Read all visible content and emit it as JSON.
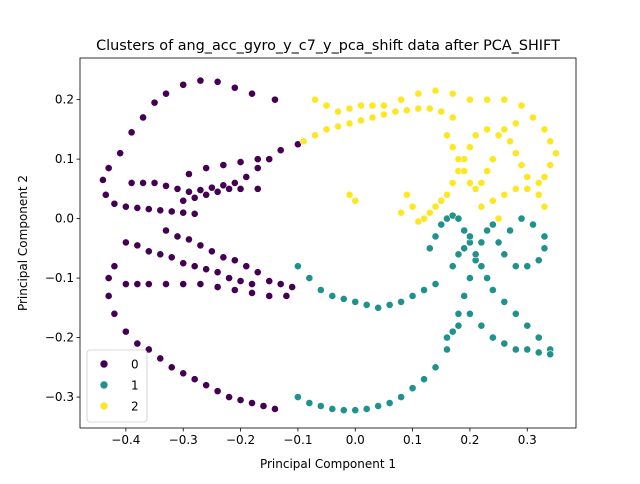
{
  "chart_data": {
    "type": "scatter",
    "title": "Clusters of ang_acc_gyro_y_c7_y_pca_shift data after PCA_SHIFT",
    "xlabel": "Principal Component 1",
    "ylabel": "Principal Component 2",
    "xlim": [
      -0.48,
      0.385
    ],
    "ylim": [
      -0.352,
      0.27
    ],
    "xticks": [
      -0.4,
      -0.3,
      -0.2,
      -0.1,
      0.0,
      0.1,
      0.2,
      0.3
    ],
    "xtick_labels": [
      "−0.4",
      "−0.3",
      "−0.2",
      "−0.1",
      "0.0",
      "0.1",
      "0.2",
      "0.3"
    ],
    "yticks": [
      -0.3,
      -0.2,
      -0.1,
      0.0,
      0.1,
      0.2
    ],
    "ytick_labels": [
      "−0.3",
      "−0.2",
      "−0.1",
      "0.0",
      "0.1",
      "0.2"
    ],
    "grid": false,
    "legend": {
      "placement": "lower-left",
      "entries": [
        "0",
        "1",
        "2"
      ]
    },
    "series": [
      {
        "name": "0",
        "color": "#440154",
        "points": [
          [
            -0.35,
            0.195
          ],
          [
            -0.33,
            0.21
          ],
          [
            -0.3,
            0.225
          ],
          [
            -0.27,
            0.232
          ],
          [
            -0.24,
            0.23
          ],
          [
            -0.21,
            0.22
          ],
          [
            -0.18,
            0.21
          ],
          [
            -0.14,
            0.2
          ],
          [
            -0.37,
            0.17
          ],
          [
            -0.39,
            0.145
          ],
          [
            -0.41,
            0.11
          ],
          [
            -0.43,
            0.085
          ],
          [
            -0.44,
            0.065
          ],
          [
            -0.435,
            0.04
          ],
          [
            -0.42,
            0.025
          ],
          [
            -0.4,
            0.02
          ],
          [
            -0.38,
            0.018
          ],
          [
            -0.36,
            0.016
          ],
          [
            -0.34,
            0.014
          ],
          [
            -0.32,
            0.012
          ],
          [
            -0.3,
            0.01
          ],
          [
            -0.28,
            0.008
          ],
          [
            -0.39,
            0.06
          ],
          [
            -0.37,
            0.06
          ],
          [
            -0.35,
            0.06
          ],
          [
            -0.33,
            0.055
          ],
          [
            -0.31,
            0.05
          ],
          [
            -0.29,
            0.045
          ],
          [
            -0.27,
            0.048
          ],
          [
            -0.25,
            0.052
          ],
          [
            -0.23,
            0.056
          ],
          [
            -0.21,
            0.06
          ],
          [
            -0.19,
            0.07
          ],
          [
            -0.17,
            0.085
          ],
          [
            -0.15,
            0.1
          ],
          [
            -0.13,
            0.115
          ],
          [
            -0.1,
            0.125
          ],
          [
            -0.29,
            0.075
          ],
          [
            -0.26,
            0.085
          ],
          [
            -0.23,
            0.09
          ],
          [
            -0.2,
            0.095
          ],
          [
            -0.17,
            0.1
          ],
          [
            -0.3,
            0.03
          ],
          [
            -0.28,
            0.035
          ],
          [
            -0.26,
            0.04
          ],
          [
            -0.24,
            0.045
          ],
          [
            -0.22,
            0.05
          ],
          [
            -0.2,
            0.05
          ],
          [
            -0.17,
            0.05
          ],
          [
            -0.33,
            -0.02
          ],
          [
            -0.31,
            -0.03
          ],
          [
            -0.29,
            -0.035
          ],
          [
            -0.27,
            -0.045
          ],
          [
            -0.25,
            -0.055
          ],
          [
            -0.23,
            -0.065
          ],
          [
            -0.21,
            -0.07
          ],
          [
            -0.19,
            -0.08
          ],
          [
            -0.17,
            -0.09
          ],
          [
            -0.15,
            -0.105
          ],
          [
            -0.13,
            -0.11
          ],
          [
            -0.11,
            -0.115
          ],
          [
            -0.4,
            -0.04
          ],
          [
            -0.38,
            -0.045
          ],
          [
            -0.36,
            -0.055
          ],
          [
            -0.34,
            -0.06
          ],
          [
            -0.32,
            -0.065
          ],
          [
            -0.3,
            -0.075
          ],
          [
            -0.28,
            -0.08
          ],
          [
            -0.26,
            -0.085
          ],
          [
            -0.24,
            -0.09
          ],
          [
            -0.22,
            -0.1
          ],
          [
            -0.2,
            -0.105
          ],
          [
            -0.18,
            -0.11
          ],
          [
            -0.42,
            -0.08
          ],
          [
            -0.43,
            -0.1
          ],
          [
            -0.43,
            -0.13
          ],
          [
            -0.42,
            -0.16
          ],
          [
            -0.4,
            -0.19
          ],
          [
            -0.38,
            -0.21
          ],
          [
            -0.36,
            -0.22
          ],
          [
            -0.34,
            -0.235
          ],
          [
            -0.32,
            -0.25
          ],
          [
            -0.3,
            -0.26
          ],
          [
            -0.28,
            -0.27
          ],
          [
            -0.26,
            -0.28
          ],
          [
            -0.24,
            -0.29
          ],
          [
            -0.22,
            -0.3
          ],
          [
            -0.2,
            -0.305
          ],
          [
            -0.18,
            -0.31
          ],
          [
            -0.16,
            -0.315
          ],
          [
            -0.14,
            -0.32
          ],
          [
            -0.4,
            -0.11
          ],
          [
            -0.38,
            -0.11
          ],
          [
            -0.36,
            -0.11
          ],
          [
            -0.33,
            -0.11
          ],
          [
            -0.3,
            -0.11
          ],
          [
            -0.27,
            -0.11
          ],
          [
            -0.24,
            -0.115
          ],
          [
            -0.21,
            -0.12
          ],
          [
            -0.18,
            -0.125
          ],
          [
            -0.15,
            -0.13
          ],
          [
            -0.12,
            -0.13
          ]
        ]
      },
      {
        "name": "1",
        "color": "#21918c",
        "points": [
          [
            -0.1,
            -0.3
          ],
          [
            -0.08,
            -0.31
          ],
          [
            -0.06,
            -0.315
          ],
          [
            -0.04,
            -0.32
          ],
          [
            -0.02,
            -0.322
          ],
          [
            0.0,
            -0.322
          ],
          [
            0.02,
            -0.32
          ],
          [
            0.04,
            -0.315
          ],
          [
            0.06,
            -0.31
          ],
          [
            0.08,
            -0.3
          ],
          [
            0.1,
            -0.285
          ],
          [
            0.12,
            -0.27
          ],
          [
            0.14,
            -0.25
          ],
          [
            0.16,
            -0.22
          ],
          [
            0.17,
            -0.19
          ],
          [
            0.18,
            -0.16
          ],
          [
            0.19,
            -0.13
          ],
          [
            0.2,
            -0.1
          ],
          [
            0.21,
            -0.07
          ],
          [
            0.22,
            -0.04
          ],
          [
            0.23,
            -0.02
          ],
          [
            0.24,
            -0.01
          ],
          [
            -0.1,
            -0.08
          ],
          [
            -0.08,
            -0.1
          ],
          [
            -0.06,
            -0.12
          ],
          [
            -0.04,
            -0.13
          ],
          [
            -0.02,
            -0.135
          ],
          [
            0.0,
            -0.14
          ],
          [
            0.02,
            -0.145
          ],
          [
            0.04,
            -0.15
          ],
          [
            0.06,
            -0.145
          ],
          [
            0.08,
            -0.14
          ],
          [
            0.1,
            -0.13
          ],
          [
            0.12,
            -0.12
          ],
          [
            0.14,
            -0.11
          ],
          [
            0.13,
            -0.05
          ],
          [
            0.14,
            -0.03
          ],
          [
            0.15,
            -0.01
          ],
          [
            0.16,
            0.0
          ],
          [
            0.17,
            0.005
          ],
          [
            0.18,
            0.0
          ],
          [
            0.19,
            -0.02
          ],
          [
            0.2,
            -0.04
          ],
          [
            0.21,
            -0.06
          ],
          [
            0.22,
            -0.08
          ],
          [
            0.23,
            -0.1
          ],
          [
            0.24,
            -0.12
          ],
          [
            0.26,
            -0.14
          ],
          [
            0.28,
            -0.16
          ],
          [
            0.3,
            -0.18
          ],
          [
            0.32,
            -0.2
          ],
          [
            0.34,
            -0.22
          ],
          [
            0.33,
            -0.05
          ],
          [
            0.32,
            -0.07
          ],
          [
            0.3,
            -0.08
          ],
          [
            0.28,
            -0.08
          ],
          [
            0.26,
            -0.06
          ],
          [
            0.25,
            -0.04
          ],
          [
            0.27,
            -0.02
          ],
          [
            0.29,
            0.0
          ],
          [
            0.31,
            -0.01
          ],
          [
            0.33,
            -0.03
          ],
          [
            0.17,
            -0.08
          ],
          [
            0.18,
            -0.06
          ],
          [
            0.19,
            -0.05
          ],
          [
            0.2,
            -0.03
          ],
          [
            0.16,
            -0.2
          ],
          [
            0.18,
            -0.18
          ],
          [
            0.2,
            -0.16
          ],
          [
            0.22,
            -0.18
          ],
          [
            0.24,
            -0.2
          ],
          [
            0.26,
            -0.21
          ],
          [
            0.28,
            -0.22
          ],
          [
            0.3,
            -0.22
          ],
          [
            0.32,
            -0.225
          ],
          [
            0.34,
            -0.228
          ]
        ]
      },
      {
        "name": "2",
        "color": "#fde725",
        "points": [
          [
            -0.09,
            0.13
          ],
          [
            -0.07,
            0.14
          ],
          [
            -0.05,
            0.15
          ],
          [
            -0.03,
            0.155
          ],
          [
            -0.01,
            0.16
          ],
          [
            0.01,
            0.165
          ],
          [
            0.03,
            0.17
          ],
          [
            0.05,
            0.175
          ],
          [
            0.07,
            0.18
          ],
          [
            0.09,
            0.182
          ],
          [
            0.11,
            0.185
          ],
          [
            0.13,
            0.185
          ],
          [
            0.15,
            0.18
          ],
          [
            0.17,
            0.17
          ],
          [
            -0.07,
            0.2
          ],
          [
            -0.05,
            0.19
          ],
          [
            -0.03,
            0.18
          ],
          [
            -0.01,
            0.185
          ],
          [
            0.01,
            0.19
          ],
          [
            0.03,
            0.19
          ],
          [
            0.05,
            0.19
          ],
          [
            0.08,
            0.2
          ],
          [
            0.11,
            0.21
          ],
          [
            0.14,
            0.215
          ],
          [
            0.17,
            0.21
          ],
          [
            0.2,
            0.2
          ],
          [
            0.23,
            0.2
          ],
          [
            0.26,
            0.2
          ],
          [
            0.29,
            0.19
          ],
          [
            0.31,
            0.17
          ],
          [
            0.33,
            0.15
          ],
          [
            0.34,
            0.13
          ],
          [
            0.35,
            0.11
          ],
          [
            0.34,
            0.09
          ],
          [
            0.33,
            0.07
          ],
          [
            0.32,
            0.06
          ],
          [
            0.3,
            0.07
          ],
          [
            0.29,
            0.09
          ],
          [
            0.28,
            0.11
          ],
          [
            0.27,
            0.13
          ],
          [
            0.25,
            0.14
          ],
          [
            0.23,
            0.15
          ],
          [
            0.21,
            0.14
          ],
          [
            0.2,
            0.12
          ],
          [
            0.19,
            0.1
          ],
          [
            0.18,
            0.08
          ],
          [
            0.17,
            0.06
          ],
          [
            0.16,
            0.04
          ],
          [
            0.15,
            0.03
          ],
          [
            0.14,
            0.02
          ],
          [
            0.13,
            0.01
          ],
          [
            0.12,
            0.0
          ],
          [
            0.11,
            -0.005
          ],
          [
            0.16,
            0.14
          ],
          [
            0.17,
            0.12
          ],
          [
            0.18,
            0.1
          ],
          [
            0.19,
            0.08
          ],
          [
            0.2,
            0.06
          ],
          [
            0.21,
            0.05
          ],
          [
            0.22,
            0.06
          ],
          [
            0.23,
            0.08
          ],
          [
            0.24,
            0.1
          ],
          [
            0.22,
            0.02
          ],
          [
            0.24,
            0.03
          ],
          [
            0.26,
            0.04
          ],
          [
            0.28,
            0.05
          ],
          [
            0.3,
            0.05
          ],
          [
            0.32,
            0.04
          ],
          [
            0.33,
            0.02
          ],
          [
            -0.01,
            0.04
          ],
          [
            0.0,
            0.03
          ],
          [
            0.09,
            0.04
          ],
          [
            0.1,
            0.02
          ],
          [
            0.08,
            0.01
          ],
          [
            0.25,
            0.0
          ],
          [
            0.26,
            0.15
          ],
          [
            0.28,
            0.16
          ]
        ]
      }
    ]
  }
}
